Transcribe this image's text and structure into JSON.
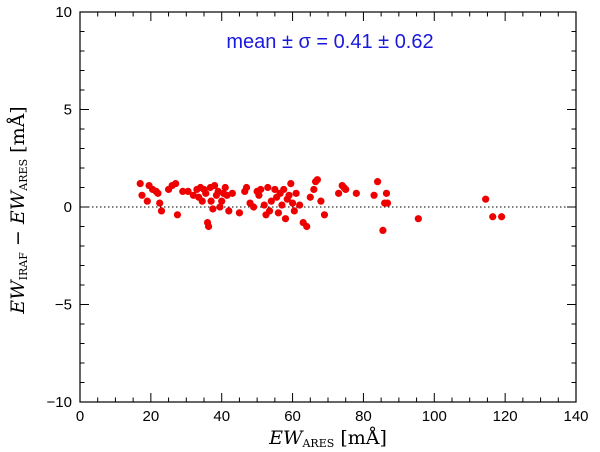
{
  "chart_data": {
    "type": "scatter",
    "title": "",
    "annotation": {
      "lhs": "mean ± σ = ",
      "mean": "0.41",
      "pm": "±",
      "sigma": "0.62"
    },
    "xlabel": {
      "base": "EW",
      "sub": "ARES",
      "unit": "[mÅ]"
    },
    "ylabel": {
      "base1": "EW",
      "sub1": "IRAF",
      "minus": "−",
      "base2": "EW",
      "sub2": "ARES",
      "unit": "[mÅ]"
    },
    "xlim": [
      0,
      140
    ],
    "ylim": [
      -10,
      10
    ],
    "xticks": [
      "0",
      "20",
      "40",
      "60",
      "80",
      "100",
      "120",
      "140"
    ],
    "yticks": [
      "−10",
      "−5",
      "0",
      "5",
      "10"
    ],
    "reference_line": {
      "y": 0,
      "style": "dotted"
    },
    "marker_color": "#ee0000",
    "series": [
      {
        "name": "EW_IRAF − EW_ARES",
        "points": [
          [
            17.0,
            1.2
          ],
          [
            17.5,
            0.6
          ],
          [
            19.0,
            0.3
          ],
          [
            19.5,
            1.1
          ],
          [
            20.5,
            0.9
          ],
          [
            21.5,
            0.8
          ],
          [
            22.0,
            0.7
          ],
          [
            22.5,
            0.2
          ],
          [
            23.0,
            -0.2
          ],
          [
            25.0,
            0.9
          ],
          [
            26.0,
            1.1
          ],
          [
            27.0,
            1.2
          ],
          [
            27.5,
            -0.4
          ],
          [
            29.0,
            0.8
          ],
          [
            30.5,
            0.8
          ],
          [
            32.0,
            0.6
          ],
          [
            33.0,
            0.9
          ],
          [
            33.5,
            0.5
          ],
          [
            34.0,
            1.0
          ],
          [
            34.5,
            0.3
          ],
          [
            35.0,
            0.9
          ],
          [
            35.5,
            0.7
          ],
          [
            36.0,
            -0.8
          ],
          [
            36.3,
            -1.0
          ],
          [
            36.8,
            1.0
          ],
          [
            37.0,
            0.3
          ],
          [
            37.5,
            -0.1
          ],
          [
            38.0,
            1.1
          ],
          [
            38.5,
            0.6
          ],
          [
            39.0,
            0.8
          ],
          [
            39.5,
            0.0
          ],
          [
            40.0,
            0.3
          ],
          [
            40.5,
            0.7
          ],
          [
            41.0,
            1.0
          ],
          [
            41.5,
            0.6
          ],
          [
            42.0,
            -0.2
          ],
          [
            43.0,
            0.7
          ],
          [
            45.0,
            -0.3
          ],
          [
            46.5,
            0.8
          ],
          [
            47.0,
            1.0
          ],
          [
            48.0,
            0.2
          ],
          [
            49.0,
            0.0
          ],
          [
            50.0,
            0.8
          ],
          [
            50.5,
            0.6
          ],
          [
            51.0,
            0.9
          ],
          [
            52.0,
            0.1
          ],
          [
            52.5,
            -0.4
          ],
          [
            53.0,
            1.0
          ],
          [
            53.5,
            -0.2
          ],
          [
            54.0,
            0.3
          ],
          [
            55.0,
            0.9
          ],
          [
            55.5,
            0.5
          ],
          [
            56.0,
            -0.3
          ],
          [
            56.5,
            0.7
          ],
          [
            57.0,
            0.1
          ],
          [
            57.5,
            0.9
          ],
          [
            58.0,
            -0.6
          ],
          [
            58.5,
            0.4
          ],
          [
            59.0,
            0.6
          ],
          [
            59.5,
            1.2
          ],
          [
            60.0,
            0.2
          ],
          [
            60.5,
            -0.2
          ],
          [
            61.0,
            0.7
          ],
          [
            62.0,
            0.1
          ],
          [
            63.0,
            -0.8
          ],
          [
            64.0,
            -1.0
          ],
          [
            65.0,
            0.5
          ],
          [
            66.0,
            0.9
          ],
          [
            66.5,
            1.3
          ],
          [
            67.0,
            1.4
          ],
          [
            68.0,
            0.3
          ],
          [
            69.0,
            -0.4
          ],
          [
            73.0,
            0.7
          ],
          [
            74.0,
            1.1
          ],
          [
            74.5,
            1.0
          ],
          [
            75.0,
            0.9
          ],
          [
            78.0,
            0.7
          ],
          [
            83.0,
            0.6
          ],
          [
            84.0,
            1.3
          ],
          [
            85.5,
            -1.2
          ],
          [
            86.0,
            0.2
          ],
          [
            86.5,
            0.7
          ],
          [
            86.8,
            0.2
          ],
          [
            95.5,
            -0.6
          ],
          [
            114.5,
            0.4
          ],
          [
            116.5,
            -0.5
          ],
          [
            119.0,
            -0.5
          ]
        ]
      }
    ]
  }
}
